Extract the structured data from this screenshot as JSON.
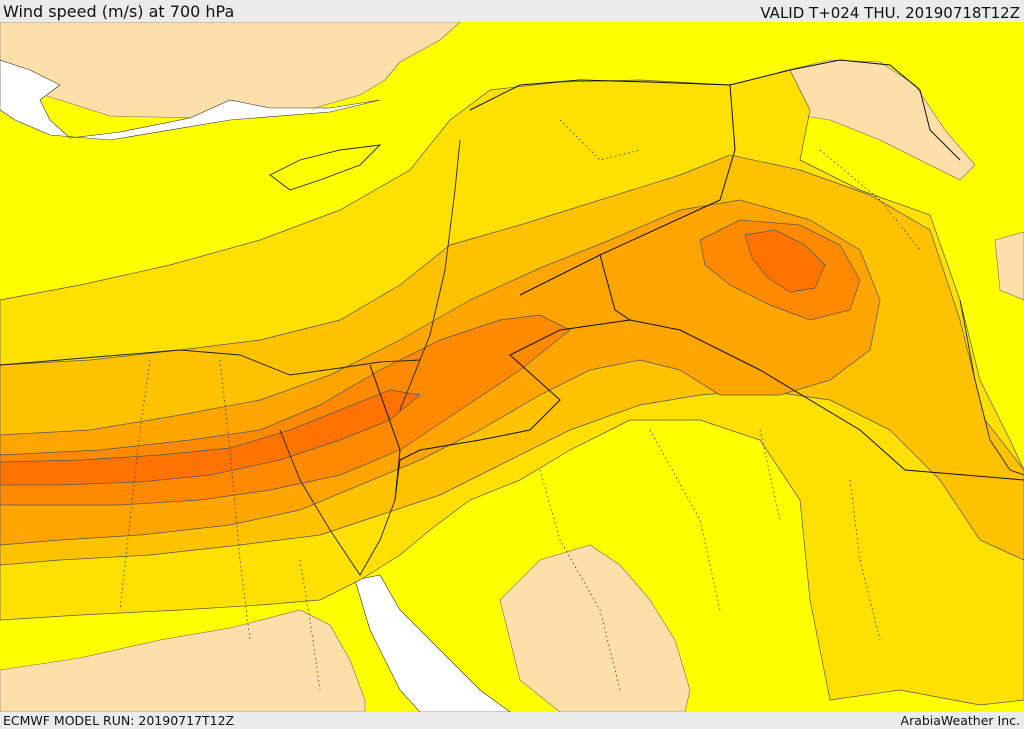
{
  "header": {
    "title": "Wind speed (m/s) at 700 hPa",
    "valid_time": "VALID T+024 THU. 20190718T12Z"
  },
  "footer": {
    "model_run": "ECMWF MODEL RUN: 20190717T12Z",
    "credit": "ArabiaWeather Inc."
  },
  "map": {
    "field": "Wind speed (m/s) at 700 hPa",
    "colors": {
      "weak": "#fddfa9",
      "base": "#ffff00",
      "band1": "#ffe000",
      "band2": "#ffc200",
      "band3": "#ffa500",
      "band4": "#ff8a00",
      "band5": "#ff7300",
      "water_masked": "#ffffff"
    }
  }
}
